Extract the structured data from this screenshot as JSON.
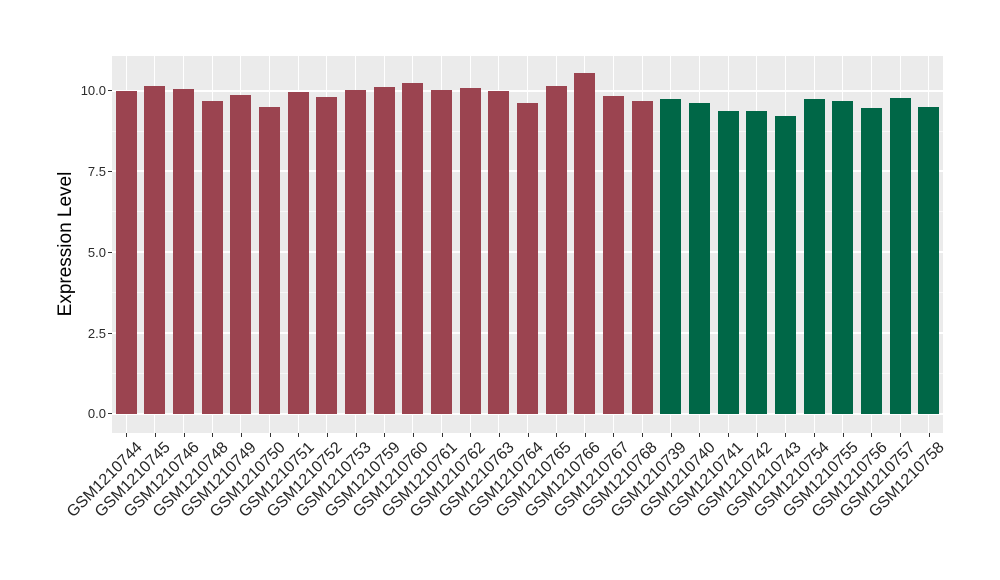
{
  "figure": {
    "background": "#FFFFFF",
    "panel_background": "#EBEBEB",
    "grid_color": "#FFFFFF",
    "tick_color": "#333333",
    "axis_text_color": "#262626"
  },
  "chart_data": {
    "type": "bar",
    "title": "",
    "xlabel": "",
    "ylabel": "Expression Level",
    "legend": "none",
    "grid": true,
    "ylim": [
      -0.59,
      11.07
    ],
    "y_ticks": {
      "labels": [
        "0.0",
        "2.5",
        "5.0",
        "7.5",
        "10.0"
      ],
      "values": [
        0,
        2.5,
        5,
        7.5,
        10
      ]
    },
    "series": [
      {
        "name": "maroon",
        "color": "#9B4450",
        "categories": [
          "GSM1210744",
          "GSM1210745",
          "GSM1210746",
          "GSM1210748",
          "GSM1210749",
          "GSM1210750",
          "GSM1210751",
          "GSM1210752",
          "GSM1210753",
          "GSM1210759",
          "GSM1210760",
          "GSM1210761",
          "GSM1210762",
          "GSM1210763",
          "GSM1210764",
          "GSM1210765",
          "GSM1210766",
          "GSM1210767",
          "GSM1210768"
        ],
        "values": [
          9.98,
          10.15,
          10.06,
          9.67,
          9.88,
          9.48,
          9.95,
          9.79,
          10.02,
          10.1,
          10.25,
          10.02,
          10.08,
          9.98,
          9.62,
          10.15,
          10.54,
          9.84,
          9.67
        ]
      },
      {
        "name": "green",
        "color": "#006747",
        "categories": [
          "GSM1210739",
          "GSM1210740",
          "GSM1210741",
          "GSM1210742",
          "GSM1210743",
          "GSM1210754",
          "GSM1210755",
          "GSM1210756",
          "GSM1210757",
          "GSM1210758"
        ],
        "values": [
          9.75,
          9.62,
          9.36,
          9.38,
          9.2,
          9.75,
          9.68,
          9.46,
          9.78,
          9.49
        ]
      }
    ]
  }
}
